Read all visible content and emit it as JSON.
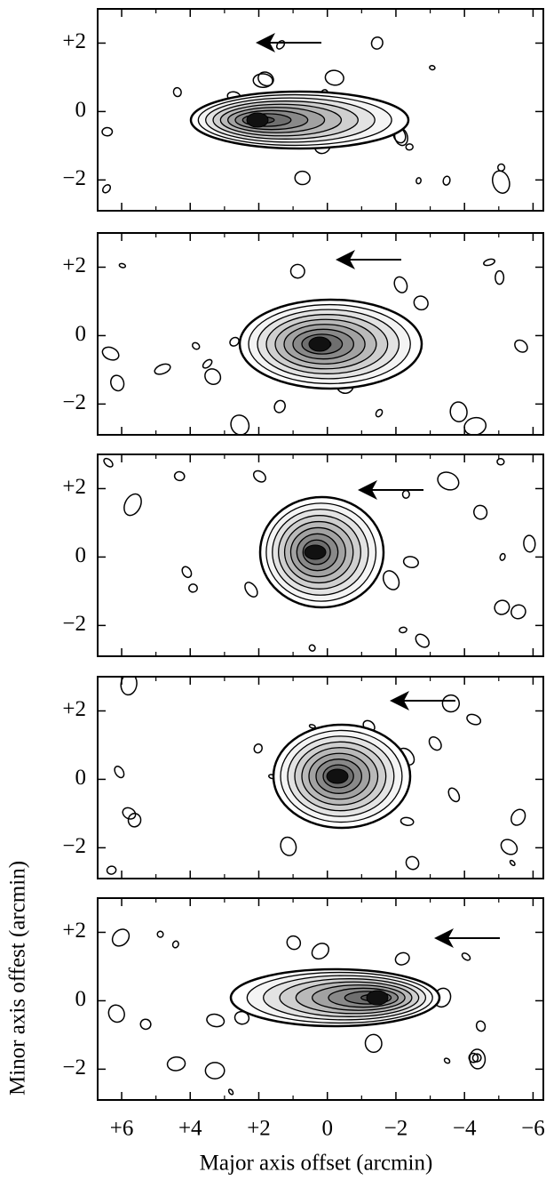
{
  "chart_data": [
    {
      "type": "contour",
      "xlim": [
        6.7,
        -6.3
      ],
      "ylim": [
        -2.9,
        3.0
      ],
      "xticks": [
        6,
        4,
        2,
        0,
        -2,
        -4,
        -6
      ],
      "xminorticks": [
        5,
        3,
        1,
        -1,
        -3,
        -5
      ],
      "yticks": [
        {
          "value": 2,
          "label": "+2"
        },
        0,
        {
          "value": -2,
          "label": "−2"
        }
      ]
    },
    {
      "type": "contour",
      "xlim": [
        6.7,
        -6.3
      ],
      "ylim": [
        -2.9,
        3.0
      ],
      "xticks": [
        6,
        4,
        2,
        0,
        -2,
        -4,
        -6
      ],
      "xminorticks": [
        5,
        3,
        1,
        -1,
        -3,
        -5
      ],
      "yticks": [
        {
          "value": 2,
          "label": "+2"
        },
        0,
        {
          "value": -2,
          "label": "−2"
        }
      ]
    },
    {
      "type": "contour",
      "xlim": [
        6.7,
        -6.3
      ],
      "ylim": [
        -2.9,
        3.0
      ],
      "xticks": [
        6,
        4,
        2,
        0,
        -2,
        -4,
        -6
      ],
      "xminorticks": [
        5,
        3,
        1,
        -1,
        -3,
        -5
      ],
      "yticks": [
        {
          "value": 2,
          "label": "+2"
        },
        0,
        {
          "value": -2,
          "label": "−2"
        }
      ]
    },
    {
      "type": "contour",
      "xlim": [
        6.7,
        -6.3
      ],
      "ylim": [
        -2.9,
        3.0
      ],
      "xticks": [
        6,
        4,
        2,
        0,
        -2,
        -4,
        -6
      ],
      "xminorticks": [
        5,
        3,
        1,
        -1,
        -3,
        -5
      ],
      "yticks": [
        {
          "value": 2,
          "label": "+2"
        },
        0,
        {
          "value": -2,
          "label": "−2"
        }
      ]
    },
    {
      "type": "contour",
      "xlim": [
        6.7,
        -6.3
      ],
      "ylim": [
        -2.9,
        3.0
      ],
      "xlabel": "Major axis offset (arcmin)",
      "ylabel": "Minor axis offest (arcmin)",
      "xticks": [
        {
          "value": 6,
          "label": "+6"
        },
        {
          "value": 4,
          "label": "+4"
        },
        {
          "value": 2,
          "label": "+2"
        },
        0,
        {
          "value": -2,
          "label": "−2"
        },
        {
          "value": -4,
          "label": "−4"
        },
        {
          "value": -6,
          "label": "−6"
        }
      ],
      "xminorticks": [
        5,
        3,
        1,
        -1,
        -3,
        -5
      ],
      "yticks": [
        {
          "value": 2,
          "label": "+2"
        },
        0,
        {
          "value": -2,
          "label": "−2"
        }
      ]
    }
  ]
}
